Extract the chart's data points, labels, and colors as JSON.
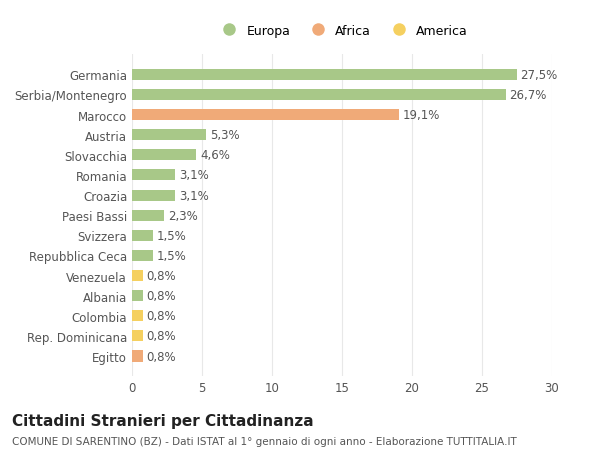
{
  "categories": [
    "Egitto",
    "Rep. Dominicana",
    "Colombia",
    "Albania",
    "Venezuela",
    "Repubblica Ceca",
    "Svizzera",
    "Paesi Bassi",
    "Croazia",
    "Romania",
    "Slovacchia",
    "Austria",
    "Marocco",
    "Serbia/Montenegro",
    "Germania"
  ],
  "values": [
    0.8,
    0.8,
    0.8,
    0.8,
    0.8,
    1.5,
    1.5,
    2.3,
    3.1,
    3.1,
    4.6,
    5.3,
    19.1,
    26.7,
    27.5
  ],
  "labels": [
    "0,8%",
    "0,8%",
    "0,8%",
    "0,8%",
    "0,8%",
    "1,5%",
    "1,5%",
    "2,3%",
    "3,1%",
    "3,1%",
    "4,6%",
    "5,3%",
    "19,1%",
    "26,7%",
    "27,5%"
  ],
  "colors": [
    "#f0aa78",
    "#f5d060",
    "#f5d060",
    "#a8c888",
    "#f5d060",
    "#a8c888",
    "#a8c888",
    "#a8c888",
    "#a8c888",
    "#a8c888",
    "#a8c888",
    "#a8c888",
    "#f0aa78",
    "#a8c888",
    "#a8c888"
  ],
  "legend_labels": [
    "Europa",
    "Africa",
    "America"
  ],
  "legend_colors": [
    "#a8c888",
    "#f0aa78",
    "#f5d060"
  ],
  "title": "Cittadini Stranieri per Cittadinanza",
  "subtitle": "COMUNE DI SARENTINO (BZ) - Dati ISTAT al 1° gennaio di ogni anno - Elaborazione TUTTITALIA.IT",
  "xlim": [
    0,
    30
  ],
  "xticks": [
    0,
    5,
    10,
    15,
    20,
    25,
    30
  ],
  "background_color": "#ffffff",
  "grid_color": "#e8e8e8",
  "text_color": "#555555",
  "label_fontsize": 8.5,
  "title_fontsize": 11,
  "subtitle_fontsize": 7.5,
  "bar_height": 0.55
}
